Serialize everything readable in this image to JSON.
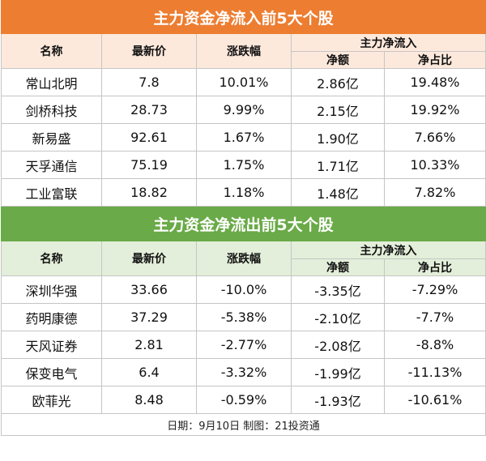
{
  "inflow": {
    "title": "主力资金净流入前5大个股",
    "headers": {
      "name": "名称",
      "price": "最新价",
      "change": "涨跌幅",
      "group": "主力净流入",
      "net": "净额",
      "ratio": "净占比"
    },
    "rows": [
      {
        "name": "常山北明",
        "price": "7.8",
        "change": "10.01%",
        "net": "2.86亿",
        "ratio": "19.48%"
      },
      {
        "name": "剑桥科技",
        "price": "28.73",
        "change": "9.99%",
        "net": "2.15亿",
        "ratio": "19.92%"
      },
      {
        "name": "新易盛",
        "price": "92.61",
        "change": "1.67%",
        "net": "1.90亿",
        "ratio": "7.66%"
      },
      {
        "name": "天孚通信",
        "price": "75.19",
        "change": "1.75%",
        "net": "1.71亿",
        "ratio": "10.33%"
      },
      {
        "name": "工业富联",
        "price": "18.82",
        "change": "1.18%",
        "net": "1.48亿",
        "ratio": "7.82%"
      }
    ]
  },
  "outflow": {
    "title": "主力资金净流出前5大个股",
    "headers": {
      "name": "名称",
      "price": "最新价",
      "change": "涨跌幅",
      "group": "主力净流入",
      "net": "净额",
      "ratio": "净占比"
    },
    "rows": [
      {
        "name": "深圳华强",
        "price": "33.66",
        "change": "-10.0%",
        "net": "-3.35亿",
        "ratio": "-7.29%"
      },
      {
        "name": "药明康德",
        "price": "37.29",
        "change": "-5.38%",
        "net": "-2.10亿",
        "ratio": "-7.7%"
      },
      {
        "name": "天风证券",
        "price": "2.81",
        "change": "-2.77%",
        "net": "-2.08亿",
        "ratio": "-8.8%"
      },
      {
        "name": "保变电气",
        "price": "6.4",
        "change": "-3.32%",
        "net": "-1.99亿",
        "ratio": "-11.13%"
      },
      {
        "name": "欧菲光",
        "price": "8.48",
        "change": "-0.59%",
        "net": "-1.93亿",
        "ratio": "-10.61%"
      }
    ]
  },
  "footer": "日期：9月10日 制图：21投资通",
  "colors": {
    "inflow_title": "#ed7d31",
    "inflow_header": "#fde9dc",
    "outflow_title": "#6aaa48",
    "outflow_header": "#e3efda"
  }
}
